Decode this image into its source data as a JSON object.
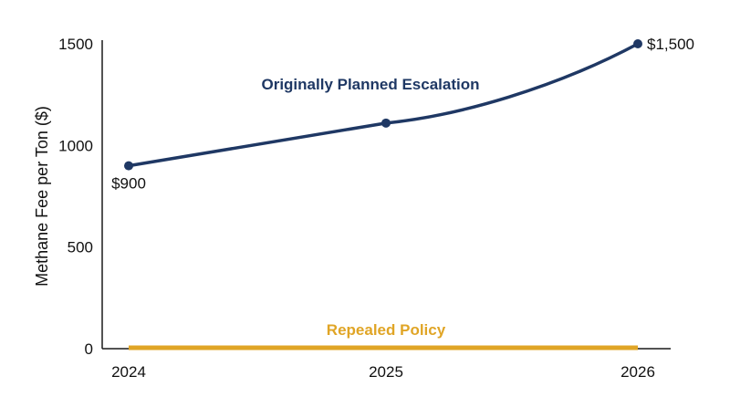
{
  "chart_data": {
    "type": "line",
    "x": [
      "2024",
      "2025",
      "2026"
    ],
    "ylabel": "Methane Fee per Ton ($)",
    "xlabel": "",
    "ylim": [
      0,
      1500
    ],
    "yticks": [
      0,
      500,
      1000,
      1500
    ],
    "grid": false,
    "series": [
      {
        "name": "Originally Planned Escalation",
        "values": [
          900,
          1110,
          1500
        ],
        "color": "#1f3864",
        "point_labels": [
          "$900",
          "",
          "$1,500"
        ],
        "markers": true
      },
      {
        "name": "Repealed Policy",
        "values": [
          0,
          0,
          0
        ],
        "color": "#e0a526",
        "point_labels": [
          "",
          "",
          ""
        ],
        "markers": false
      }
    ]
  }
}
